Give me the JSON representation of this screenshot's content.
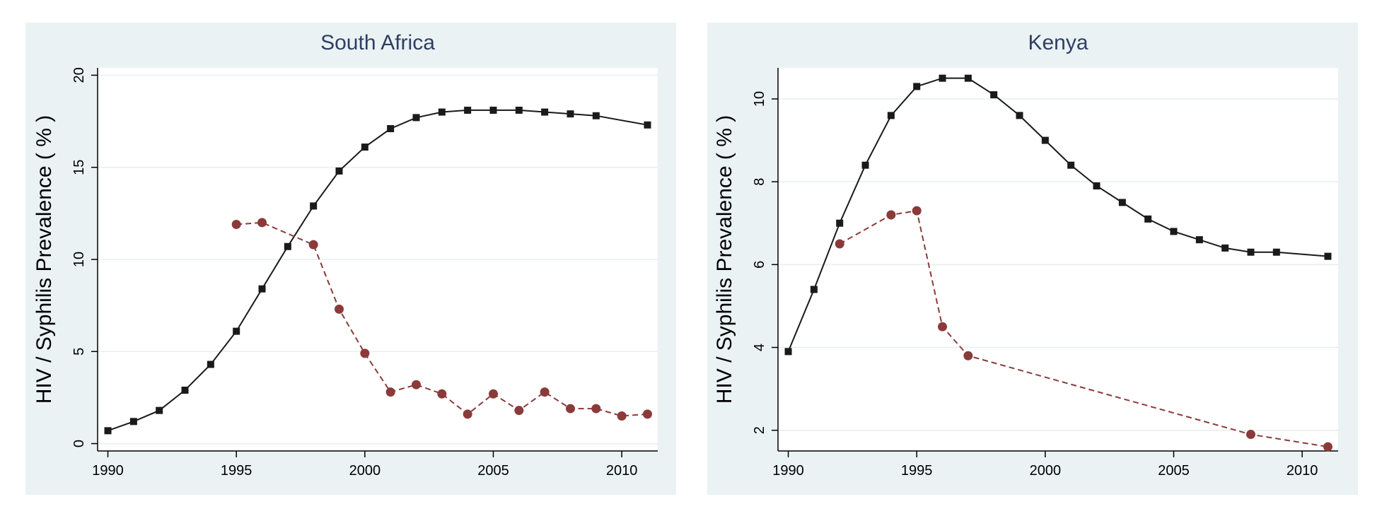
{
  "chart_data": [
    {
      "type": "line",
      "title": "South Africa",
      "ylabel": "HIV / Syphilis Prevalence ( % )",
      "xlabel": "",
      "xlim": [
        1989.6,
        2011.4
      ],
      "ylim": [
        -0.4,
        20.4
      ],
      "xticks": [
        1990,
        1995,
        2000,
        2005,
        2010
      ],
      "yticks": [
        0,
        5,
        10,
        15,
        20
      ],
      "grid": true,
      "series": [
        {
          "style": "solid",
          "marker": "square",
          "color": "#1a1a1a",
          "x": [
            1990,
            1991,
            1992,
            1993,
            1994,
            1995,
            1996,
            1997,
            1998,
            1999,
            2000,
            2001,
            2002,
            2003,
            2004,
            2005,
            2006,
            2007,
            2008,
            2009,
            2011
          ],
          "y": [
            0.7,
            1.2,
            1.8,
            2.9,
            4.3,
            6.1,
            8.4,
            10.7,
            12.9,
            14.8,
            16.1,
            17.1,
            17.7,
            18.0,
            18.1,
            18.1,
            18.1,
            18.0,
            17.9,
            17.8,
            17.3
          ]
        },
        {
          "style": "dashed",
          "marker": "circle",
          "color": "#8b3a3a",
          "x": [
            1995,
            1996,
            1998,
            1999,
            2000,
            2001,
            2002,
            2003,
            2004,
            2005,
            2006,
            2007,
            2008,
            2009,
            2010,
            2011
          ],
          "y": [
            11.9,
            12.0,
            10.8,
            7.3,
            4.9,
            2.8,
            3.2,
            2.7,
            1.6,
            2.7,
            1.8,
            2.8,
            1.9,
            1.9,
            1.5,
            1.6
          ]
        }
      ]
    },
    {
      "type": "line",
      "title": "Kenya",
      "ylabel": "HIV / Syphilis Prevalence ( % )",
      "xlabel": "",
      "xlim": [
        1989.6,
        2011.4
      ],
      "ylim": [
        1.5,
        10.75
      ],
      "xticks": [
        1990,
        1995,
        2000,
        2005,
        2010
      ],
      "yticks": [
        2,
        4,
        6,
        8,
        10
      ],
      "grid": true,
      "series": [
        {
          "style": "solid",
          "marker": "square",
          "color": "#1a1a1a",
          "x": [
            1990,
            1991,
            1992,
            1993,
            1994,
            1995,
            1996,
            1997,
            1998,
            1999,
            2000,
            2001,
            2002,
            2003,
            2004,
            2005,
            2006,
            2007,
            2008,
            2009,
            2011
          ],
          "y": [
            3.9,
            5.4,
            7.0,
            8.4,
            9.6,
            10.3,
            10.5,
            10.5,
            10.1,
            9.6,
            9.0,
            8.4,
            7.9,
            7.5,
            7.1,
            6.8,
            6.6,
            6.4,
            6.3,
            6.3,
            6.2
          ]
        },
        {
          "style": "dashed",
          "marker": "circle",
          "color": "#8b3a3a",
          "x": [
            1992,
            1994,
            1995,
            1996,
            1997,
            2008,
            2011
          ],
          "y": [
            6.5,
            7.2,
            7.3,
            4.5,
            3.8,
            1.9,
            1.6
          ]
        }
      ]
    }
  ],
  "colors": {
    "panel_background": "#eaf2f3",
    "plot_background": "#ffffff",
    "gridline": "#e8eef0",
    "title_text": "#2e3f63"
  }
}
